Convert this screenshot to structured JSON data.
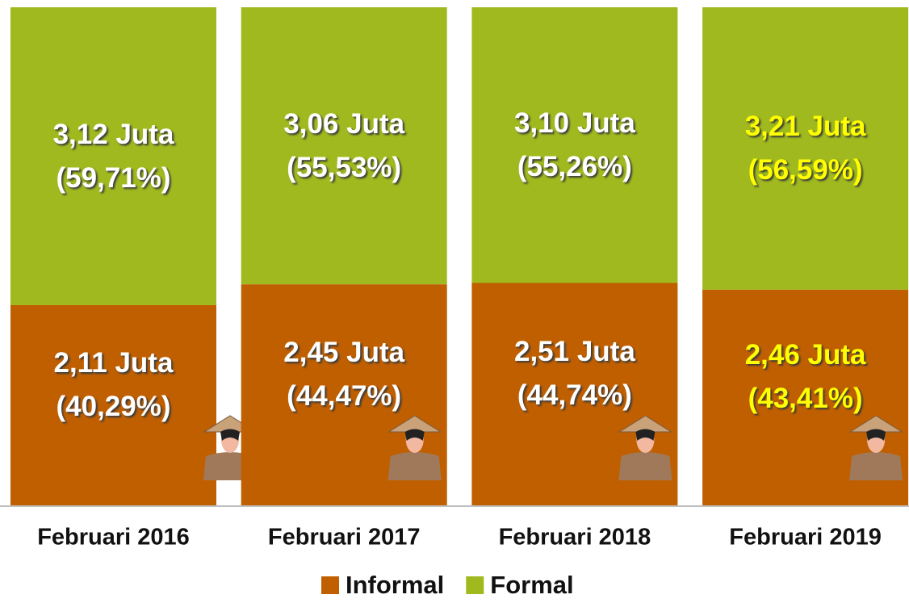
{
  "chart_data": {
    "type": "bar",
    "stacked": true,
    "categories": [
      "Februari 2016",
      "Februari 2017",
      "Februari 2018",
      "Februari 2019"
    ],
    "series": [
      {
        "name": "Informal",
        "color": "#c05f00",
        "values": [
          40.29,
          44.47,
          44.74,
          43.41
        ],
        "value_labels": [
          [
            "2,11 Juta",
            "(40,29%)"
          ],
          [
            "2,45 Juta",
            "(44,47%)"
          ],
          [
            "2,51 Juta",
            "(44,74%)"
          ],
          [
            "2,46 Juta",
            "(43,41%)"
          ]
        ]
      },
      {
        "name": "Formal",
        "color": "#a0b91e",
        "values": [
          59.71,
          55.53,
          55.26,
          56.59
        ],
        "value_labels": [
          [
            "3,12 Juta",
            "(59,71%)"
          ],
          [
            "3,06 Juta",
            "(55,53%)"
          ],
          [
            "3,10 Juta",
            "(55,26%)"
          ],
          [
            "3,21 Juta",
            "(56,59%)"
          ]
        ]
      }
    ],
    "label_colors": [
      "#ffffff",
      "#ffffff",
      "#ffffff",
      "#ffff00"
    ],
    "ylim": [
      0,
      100
    ],
    "legend": "bottom"
  }
}
